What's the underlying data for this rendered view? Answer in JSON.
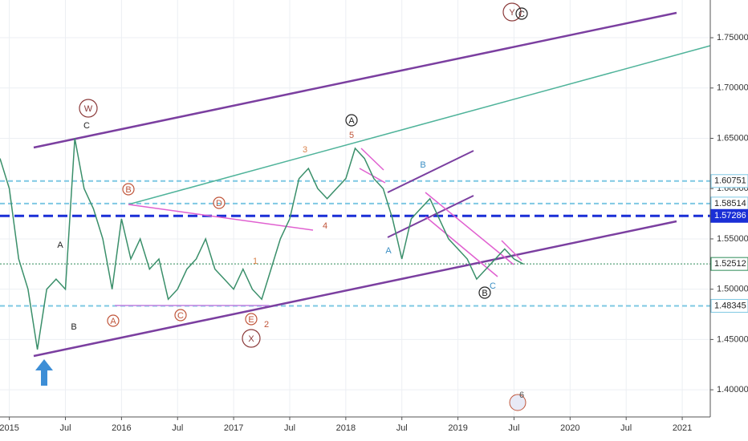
{
  "chart_data": {
    "type": "line",
    "x": [
      "2014-12",
      "2015-01",
      "2015-02",
      "2015-03",
      "2015-04",
      "2015-05",
      "2015-06",
      "2015-07",
      "2015-08",
      "2015-09",
      "2015-10",
      "2015-11",
      "2015-12",
      "2016-01",
      "2016-02",
      "2016-03",
      "2016-04",
      "2016-05",
      "2016-06",
      "2016-07",
      "2016-08",
      "2016-09",
      "2016-10",
      "2016-11",
      "2016-12",
      "2017-01",
      "2017-02",
      "2017-03",
      "2017-04",
      "2017-05",
      "2017-06",
      "2017-07",
      "2017-08",
      "2017-09",
      "2017-10",
      "2017-11",
      "2017-12",
      "2018-01",
      "2018-02",
      "2018-03",
      "2018-04",
      "2018-05",
      "2018-06",
      "2018-07",
      "2018-08",
      "2018-09",
      "2018-10",
      "2018-11",
      "2018-12",
      "2019-01",
      "2019-02",
      "2019-03",
      "2019-04",
      "2019-05",
      "2019-06",
      "2019-07",
      "2019-08"
    ],
    "series": [
      {
        "color": "#3a8f6a",
        "values": [
          1.63,
          1.6,
          1.53,
          1.5,
          1.44,
          1.5,
          1.51,
          1.5,
          1.65,
          1.6,
          1.58,
          1.55,
          1.5,
          1.57,
          1.53,
          1.55,
          1.52,
          1.53,
          1.49,
          1.5,
          1.52,
          1.53,
          1.55,
          1.52,
          1.51,
          1.5,
          1.52,
          1.5,
          1.49,
          1.52,
          1.55,
          1.57,
          1.61,
          1.62,
          1.6,
          1.59,
          1.6,
          1.61,
          1.64,
          1.63,
          1.61,
          1.6,
          1.57,
          1.53,
          1.57,
          1.58,
          1.59,
          1.57,
          1.55,
          1.54,
          1.53,
          1.51,
          1.52,
          1.53,
          1.54,
          1.53,
          1.525
        ]
      }
    ],
    "xlim": [
      "2014-12",
      "2021-04"
    ],
    "xticks": [
      {
        "value": "2015-01",
        "label": "2015"
      },
      {
        "value": "2015-07",
        "label": "Jul"
      },
      {
        "value": "2016-01",
        "label": "2016"
      },
      {
        "value": "2016-07",
        "label": "Jul"
      },
      {
        "value": "2017-01",
        "label": "2017"
      },
      {
        "value": "2017-07",
        "label": "Jul"
      },
      {
        "value": "2018-01",
        "label": "2018"
      },
      {
        "value": "2018-07",
        "label": "Jul"
      },
      {
        "value": "2019-01",
        "label": "2019"
      },
      {
        "value": "2019-07",
        "label": "Jul"
      },
      {
        "value": "2020-01",
        "label": "2020"
      },
      {
        "value": "2020-07",
        "label": "Jul"
      },
      {
        "value": "2021-01",
        "label": "2021"
      }
    ],
    "ylim": [
      1.373,
      1.7875
    ],
    "yticks": [
      {
        "value": 1.4,
        "label": "1.40000"
      },
      {
        "value": 1.45,
        "label": "1.45000"
      },
      {
        "value": 1.5,
        "label": "1.50000"
      },
      {
        "value": 1.55,
        "label": "1.55000"
      },
      {
        "value": 1.6,
        "label": "1.60000"
      },
      {
        "value": 1.65,
        "label": "1.65000"
      },
      {
        "value": 1.7,
        "label": "1.70000"
      },
      {
        "value": 1.75,
        "label": "1.75000"
      }
    ],
    "grid": true,
    "levels": [
      {
        "value": 1.60751,
        "color": "#7ec8e3",
        "style": "dashed"
      },
      {
        "value": 1.58514,
        "color": "#7ec8e3",
        "style": "dashed"
      },
      {
        "value": 1.57286,
        "color": "#1a2fd6",
        "style": "thick"
      },
      {
        "value": 1.52512,
        "color": "#2e8b57",
        "style": "dotted"
      },
      {
        "value": 1.48345,
        "color": "#7ec8e3",
        "style": "dashed"
      }
    ],
    "annotations": [
      "W",
      "C",
      "A",
      "B",
      "B",
      "A",
      "C",
      "D",
      "E",
      "X",
      "1",
      "2",
      "3",
      "4",
      "5",
      "A",
      "A",
      "B",
      "B",
      "C",
      "Y",
      "C",
      "6"
    ]
  }
}
